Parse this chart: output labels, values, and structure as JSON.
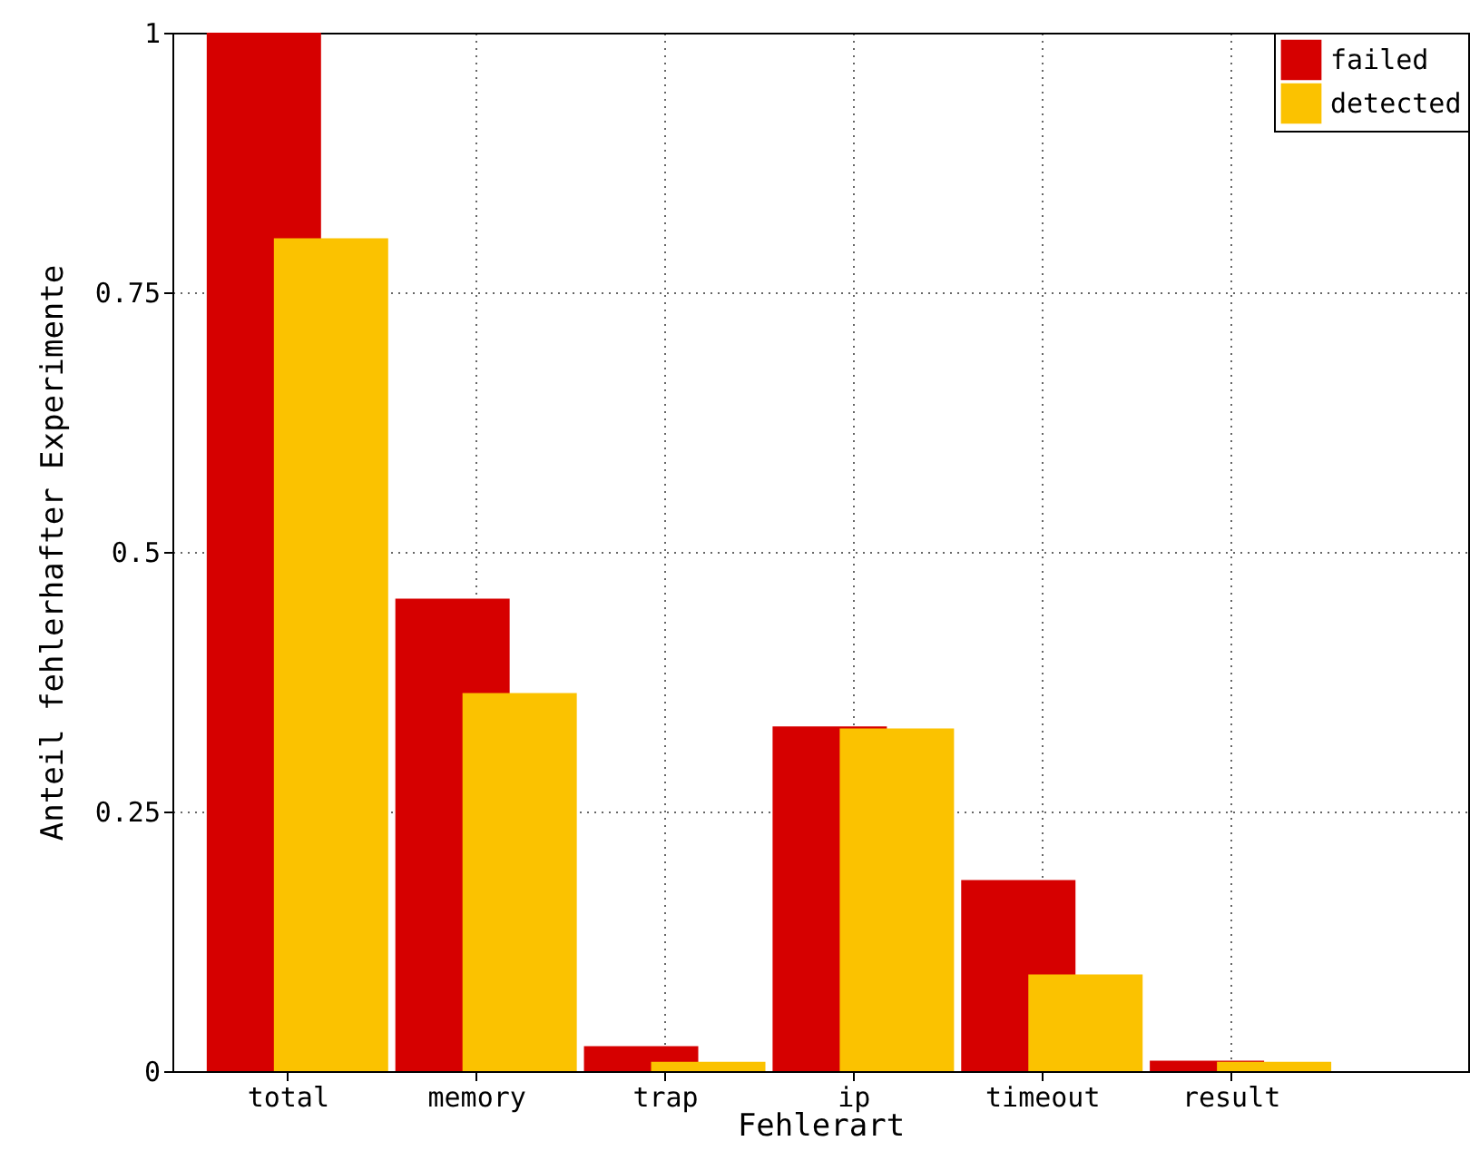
{
  "chart_data": {
    "type": "bar",
    "xlabel": "Fehlerart",
    "ylabel": "Anteil fehlerhafter Experimente",
    "categories": [
      "total",
      "memory",
      "trap",
      "ip",
      "timeout",
      "result"
    ],
    "series": [
      {
        "name": "failed",
        "color": "#d60000",
        "values": [
          1,
          0.455,
          0.024,
          0.332,
          0.184,
          0.01
        ]
      },
      {
        "name": "detected",
        "color": "#fbc200",
        "values": [
          0.802,
          0.364,
          0.009,
          0.33,
          0.093,
          0.009
        ]
      }
    ],
    "ylim": [
      0,
      1
    ],
    "yticks": [
      0,
      0.25,
      0.5,
      0.75,
      1
    ],
    "grid": true,
    "legend": "top right"
  }
}
